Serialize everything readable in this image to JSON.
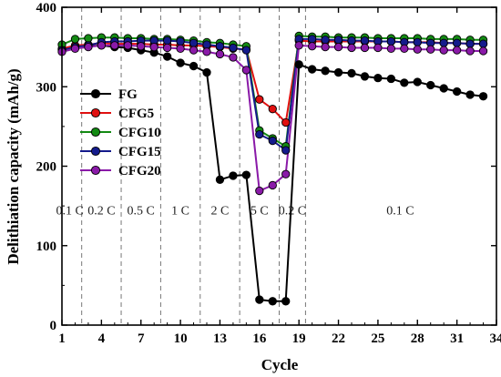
{
  "chart_data": {
    "type": "line",
    "title": "",
    "xlabel": "Cycle",
    "ylabel": "Delithiation capacity (mAh/g)",
    "xlim": [
      1,
      34
    ],
    "ylim": [
      0,
      400
    ],
    "x_ticks": [
      1,
      4,
      7,
      10,
      13,
      16,
      19,
      22,
      25,
      28,
      31,
      34
    ],
    "y_ticks": [
      0,
      100,
      200,
      300,
      400
    ],
    "grid": false,
    "legend": "upper-left",
    "rate_dividers": [
      2.5,
      5.5,
      8.5,
      11.5,
      14.5,
      17.5,
      19.5
    ],
    "rate_labels": [
      {
        "text": "0.1 C",
        "x": 1.6
      },
      {
        "text": "0.2 C",
        "x": 4.0
      },
      {
        "text": "0.5 C",
        "x": 7.0
      },
      {
        "text": "1 C",
        "x": 10.0
      },
      {
        "text": "2 C",
        "x": 13.0
      },
      {
        "text": "5 C",
        "x": 16.0
      },
      {
        "text": "0.2 C",
        "x": 18.5
      },
      {
        "text": "0.1 C",
        "x": 26.7
      }
    ],
    "rate_label_y": 145,
    "series": [
      {
        "name": "FG",
        "color": "#000000",
        "x": [
          1,
          2,
          3,
          4,
          5,
          6,
          7,
          8,
          9,
          10,
          11,
          12,
          13,
          14,
          15,
          16,
          17,
          18,
          19,
          20,
          21,
          22,
          23,
          24,
          25,
          26,
          27,
          28,
          29,
          30,
          31,
          32,
          33
        ],
        "values": [
          347,
          350,
          351,
          352,
          350,
          349,
          346,
          343,
          338,
          330,
          326,
          318,
          183,
          188,
          189,
          32,
          30,
          30,
          328,
          322,
          320,
          318,
          317,
          313,
          311,
          310,
          305,
          306,
          302,
          298,
          294,
          290,
          288
        ]
      },
      {
        "name": "CFG5",
        "color": "#e01010",
        "x": [
          1,
          2,
          3,
          4,
          5,
          6,
          7,
          8,
          9,
          10,
          11,
          12,
          13,
          14,
          15,
          16,
          17,
          18,
          19,
          20,
          21,
          22,
          23,
          24,
          25,
          26,
          27,
          28,
          29,
          30,
          31,
          32,
          33
        ],
        "values": [
          348,
          352,
          353,
          355,
          354,
          354,
          354,
          353,
          353,
          352,
          352,
          351,
          350,
          348,
          347,
          284,
          272,
          255,
          358,
          357,
          357,
          357,
          357,
          357,
          357,
          357,
          356,
          356,
          356,
          355,
          355,
          354,
          354
        ]
      },
      {
        "name": "CFG10",
        "color": "#138a13",
        "x": [
          1,
          2,
          3,
          4,
          5,
          6,
          7,
          8,
          9,
          10,
          11,
          12,
          13,
          14,
          15,
          16,
          17,
          18,
          19,
          20,
          21,
          22,
          23,
          24,
          25,
          26,
          27,
          28,
          29,
          30,
          31,
          32,
          33
        ],
        "values": [
          353,
          360,
          361,
          362,
          362,
          361,
          361,
          360,
          360,
          359,
          358,
          356,
          355,
          353,
          351,
          245,
          235,
          225,
          364,
          363,
          363,
          362,
          362,
          362,
          361,
          361,
          361,
          361,
          360,
          360,
          360,
          359,
          359
        ]
      },
      {
        "name": "CFG15",
        "color": "#141b8c",
        "x": [
          1,
          2,
          3,
          4,
          5,
          6,
          7,
          8,
          9,
          10,
          11,
          12,
          13,
          14,
          15,
          16,
          17,
          18,
          19,
          20,
          21,
          22,
          23,
          24,
          25,
          26,
          27,
          28,
          29,
          30,
          31,
          32,
          33
        ],
        "values": [
          346,
          350,
          352,
          356,
          357,
          357,
          358,
          358,
          358,
          357,
          355,
          353,
          351,
          349,
          346,
          240,
          232,
          220,
          360,
          360,
          359,
          359,
          358,
          358,
          357,
          357,
          356,
          356,
          355,
          355,
          355,
          354,
          354
        ]
      },
      {
        "name": "CFG20",
        "color": "#8a1aa8",
        "x": [
          1,
          2,
          3,
          4,
          5,
          6,
          7,
          8,
          9,
          10,
          11,
          12,
          13,
          14,
          15,
          16,
          17,
          18,
          19,
          20,
          21,
          22,
          23,
          24,
          25,
          26,
          27,
          28,
          29,
          30,
          31,
          32,
          33
        ],
        "values": [
          344,
          348,
          350,
          352,
          352,
          352,
          351,
          350,
          349,
          348,
          346,
          344,
          341,
          337,
          321,
          169,
          176,
          190,
          352,
          351,
          350,
          350,
          349,
          349,
          349,
          348,
          348,
          347,
          347,
          346,
          346,
          345,
          345
        ]
      }
    ]
  }
}
